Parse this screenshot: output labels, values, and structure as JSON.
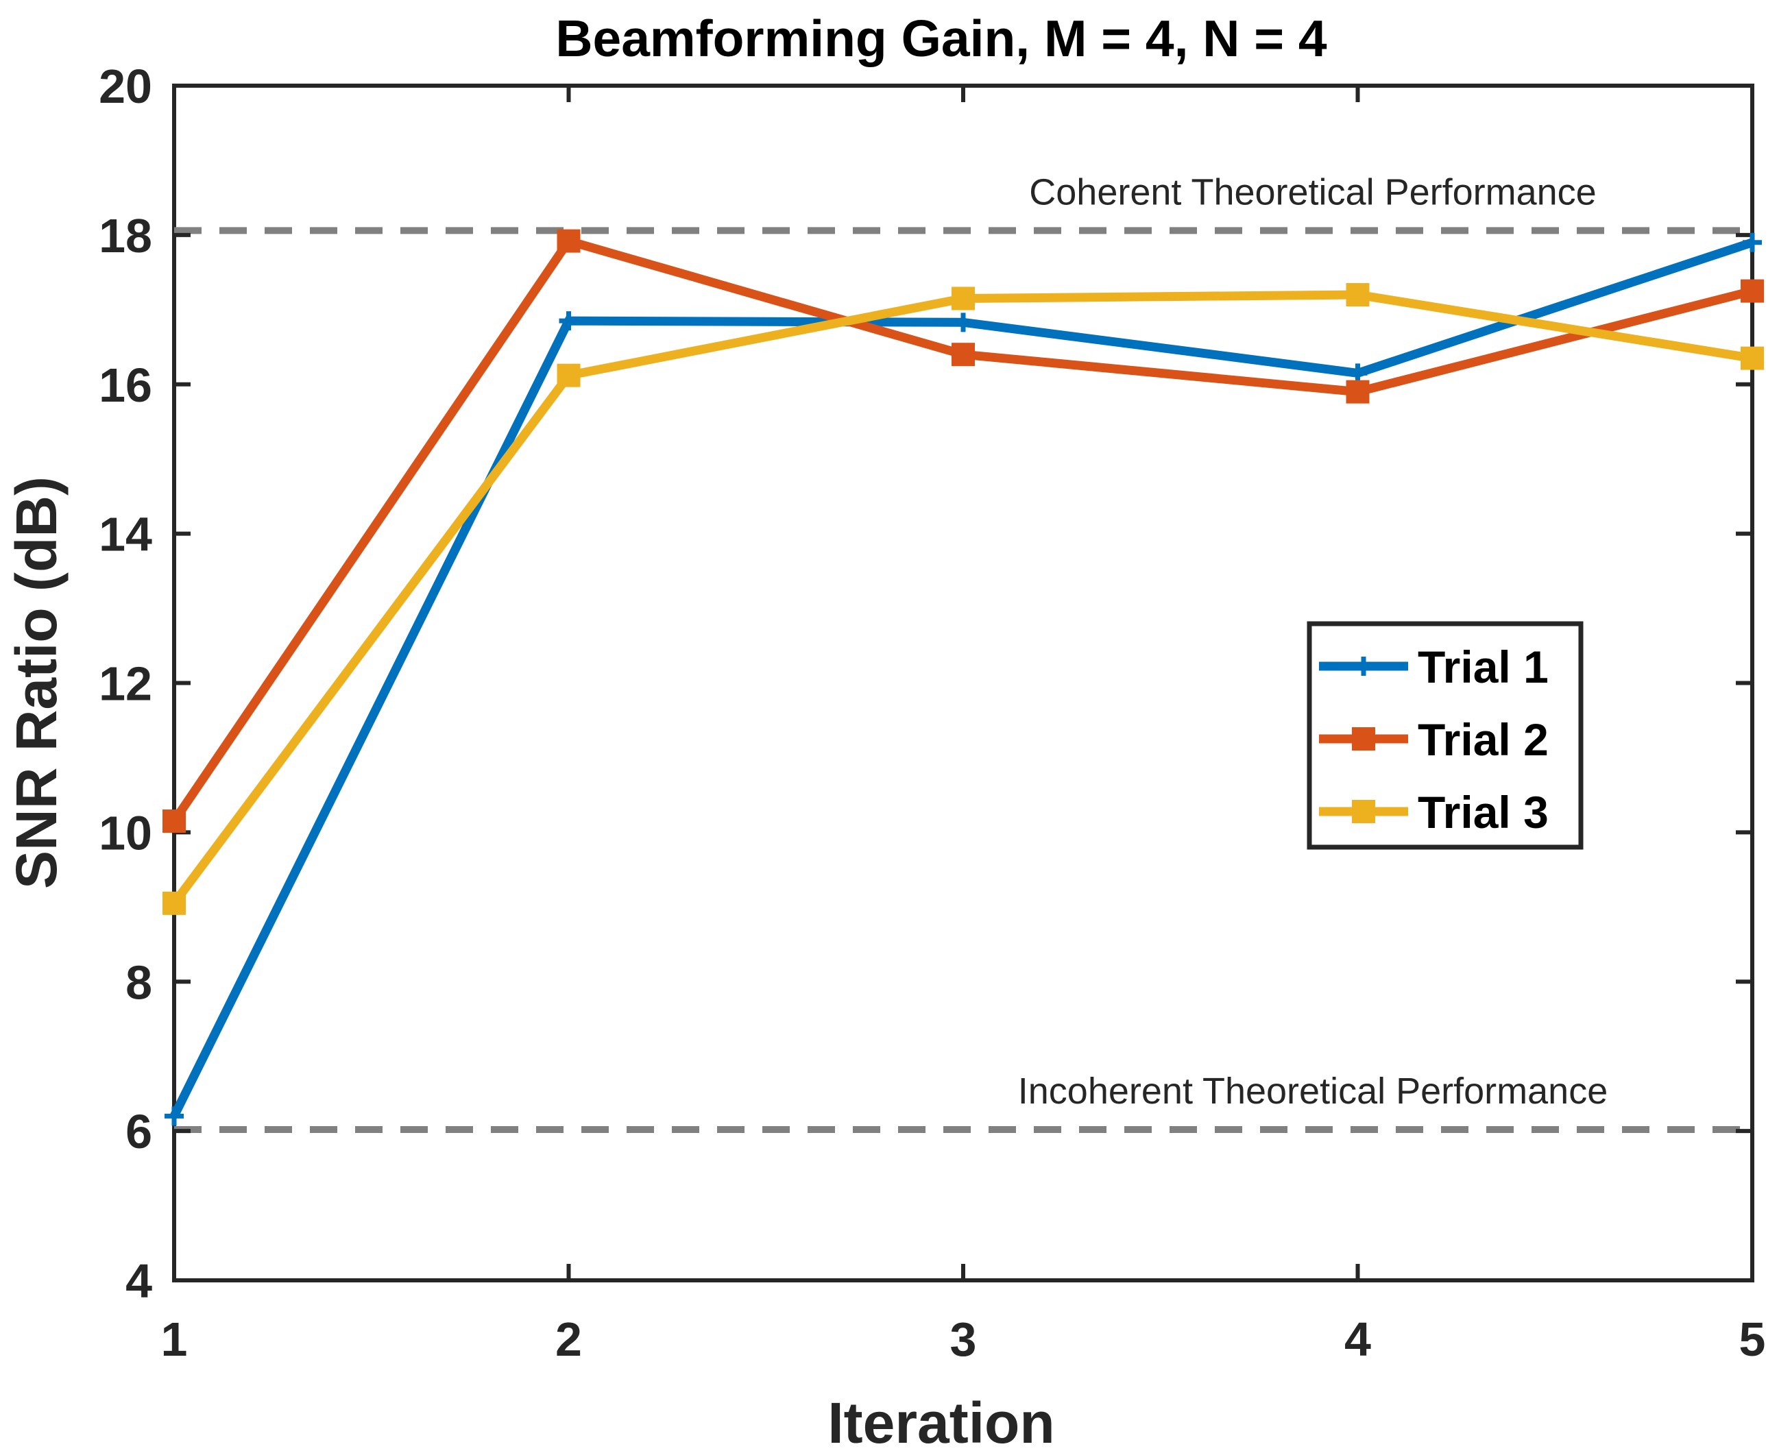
{
  "chart_data": {
    "type": "line",
    "title": "Beamforming Gain, M = 4, N = 4",
    "xlabel": "Iteration",
    "ylabel": "SNR Ratio (dB)",
    "xlim": [
      1,
      5
    ],
    "ylim": [
      4,
      20
    ],
    "x_ticks": [
      "1",
      "2",
      "3",
      "4",
      "5"
    ],
    "y_ticks": [
      "4",
      "6",
      "8",
      "10",
      "12",
      "14",
      "16",
      "18",
      "20"
    ],
    "grid": false,
    "legend_position": "right",
    "x": [
      1,
      2,
      3,
      4,
      5
    ],
    "series": [
      {
        "name": "Trial 1",
        "color": "#0072BD",
        "marker": "plus",
        "values": [
          6.2,
          16.85,
          16.83,
          16.15,
          17.9
        ]
      },
      {
        "name": "Trial 2",
        "color": "#D95319",
        "marker": "square",
        "values": [
          10.15,
          17.92,
          16.4,
          15.9,
          17.25
        ]
      },
      {
        "name": "Trial 3",
        "color": "#EDB120",
        "marker": "square",
        "values": [
          9.05,
          16.12,
          17.15,
          17.2,
          16.35
        ]
      }
    ],
    "reference_lines": [
      {
        "label": "Coherent Theoretical Performance",
        "value": 18.06,
        "color": "#808080",
        "style": "dashed"
      },
      {
        "label": "Incoherent Theoretical Performance",
        "value": 6.02,
        "color": "#808080",
        "style": "dashed"
      }
    ]
  }
}
